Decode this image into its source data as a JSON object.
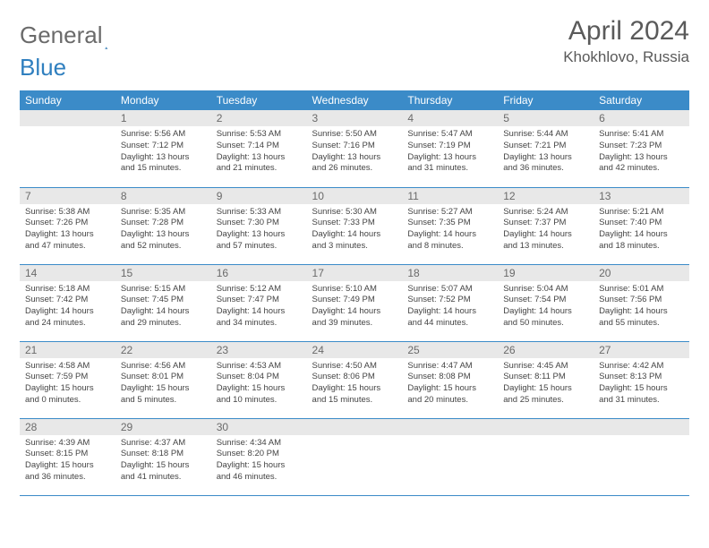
{
  "logo": {
    "text1": "General",
    "text2": "Blue",
    "accent_color": "#2f7fbf"
  },
  "title": "April 2024",
  "location": "Khokhlovo, Russia",
  "colors": {
    "header_bg": "#3b8bc8",
    "header_fg": "#ffffff",
    "daynum_bg": "#e8e8e8",
    "daynum_fg": "#6a6a6a",
    "text": "#444444",
    "rule": "#3b8bc8"
  },
  "day_names": [
    "Sunday",
    "Monday",
    "Tuesday",
    "Wednesday",
    "Thursday",
    "Friday",
    "Saturday"
  ],
  "weeks": [
    [
      {
        "n": "",
        "sr": "",
        "ss": "",
        "dl": ""
      },
      {
        "n": "1",
        "sr": "5:56 AM",
        "ss": "7:12 PM",
        "dl": "13 hours and 15 minutes."
      },
      {
        "n": "2",
        "sr": "5:53 AM",
        "ss": "7:14 PM",
        "dl": "13 hours and 21 minutes."
      },
      {
        "n": "3",
        "sr": "5:50 AM",
        "ss": "7:16 PM",
        "dl": "13 hours and 26 minutes."
      },
      {
        "n": "4",
        "sr": "5:47 AM",
        "ss": "7:19 PM",
        "dl": "13 hours and 31 minutes."
      },
      {
        "n": "5",
        "sr": "5:44 AM",
        "ss": "7:21 PM",
        "dl": "13 hours and 36 minutes."
      },
      {
        "n": "6",
        "sr": "5:41 AM",
        "ss": "7:23 PM",
        "dl": "13 hours and 42 minutes."
      }
    ],
    [
      {
        "n": "7",
        "sr": "5:38 AM",
        "ss": "7:26 PM",
        "dl": "13 hours and 47 minutes."
      },
      {
        "n": "8",
        "sr": "5:35 AM",
        "ss": "7:28 PM",
        "dl": "13 hours and 52 minutes."
      },
      {
        "n": "9",
        "sr": "5:33 AM",
        "ss": "7:30 PM",
        "dl": "13 hours and 57 minutes."
      },
      {
        "n": "10",
        "sr": "5:30 AM",
        "ss": "7:33 PM",
        "dl": "14 hours and 3 minutes."
      },
      {
        "n": "11",
        "sr": "5:27 AM",
        "ss": "7:35 PM",
        "dl": "14 hours and 8 minutes."
      },
      {
        "n": "12",
        "sr": "5:24 AM",
        "ss": "7:37 PM",
        "dl": "14 hours and 13 minutes."
      },
      {
        "n": "13",
        "sr": "5:21 AM",
        "ss": "7:40 PM",
        "dl": "14 hours and 18 minutes."
      }
    ],
    [
      {
        "n": "14",
        "sr": "5:18 AM",
        "ss": "7:42 PM",
        "dl": "14 hours and 24 minutes."
      },
      {
        "n": "15",
        "sr": "5:15 AM",
        "ss": "7:45 PM",
        "dl": "14 hours and 29 minutes."
      },
      {
        "n": "16",
        "sr": "5:12 AM",
        "ss": "7:47 PM",
        "dl": "14 hours and 34 minutes."
      },
      {
        "n": "17",
        "sr": "5:10 AM",
        "ss": "7:49 PM",
        "dl": "14 hours and 39 minutes."
      },
      {
        "n": "18",
        "sr": "5:07 AM",
        "ss": "7:52 PM",
        "dl": "14 hours and 44 minutes."
      },
      {
        "n": "19",
        "sr": "5:04 AM",
        "ss": "7:54 PM",
        "dl": "14 hours and 50 minutes."
      },
      {
        "n": "20",
        "sr": "5:01 AM",
        "ss": "7:56 PM",
        "dl": "14 hours and 55 minutes."
      }
    ],
    [
      {
        "n": "21",
        "sr": "4:58 AM",
        "ss": "7:59 PM",
        "dl": "15 hours and 0 minutes."
      },
      {
        "n": "22",
        "sr": "4:56 AM",
        "ss": "8:01 PM",
        "dl": "15 hours and 5 minutes."
      },
      {
        "n": "23",
        "sr": "4:53 AM",
        "ss": "8:04 PM",
        "dl": "15 hours and 10 minutes."
      },
      {
        "n": "24",
        "sr": "4:50 AM",
        "ss": "8:06 PM",
        "dl": "15 hours and 15 minutes."
      },
      {
        "n": "25",
        "sr": "4:47 AM",
        "ss": "8:08 PM",
        "dl": "15 hours and 20 minutes."
      },
      {
        "n": "26",
        "sr": "4:45 AM",
        "ss": "8:11 PM",
        "dl": "15 hours and 25 minutes."
      },
      {
        "n": "27",
        "sr": "4:42 AM",
        "ss": "8:13 PM",
        "dl": "15 hours and 31 minutes."
      }
    ],
    [
      {
        "n": "28",
        "sr": "4:39 AM",
        "ss": "8:15 PM",
        "dl": "15 hours and 36 minutes."
      },
      {
        "n": "29",
        "sr": "4:37 AM",
        "ss": "8:18 PM",
        "dl": "15 hours and 41 minutes."
      },
      {
        "n": "30",
        "sr": "4:34 AM",
        "ss": "8:20 PM",
        "dl": "15 hours and 46 minutes."
      },
      {
        "n": "",
        "sr": "",
        "ss": "",
        "dl": ""
      },
      {
        "n": "",
        "sr": "",
        "ss": "",
        "dl": ""
      },
      {
        "n": "",
        "sr": "",
        "ss": "",
        "dl": ""
      },
      {
        "n": "",
        "sr": "",
        "ss": "",
        "dl": ""
      }
    ]
  ],
  "labels": {
    "sunrise": "Sunrise: ",
    "sunset": "Sunset: ",
    "daylight": "Daylight: "
  }
}
